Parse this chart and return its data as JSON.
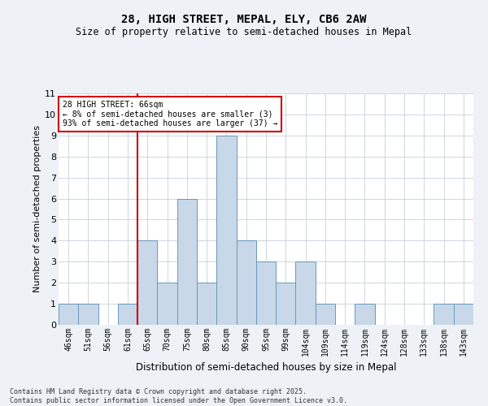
{
  "title1": "28, HIGH STREET, MEPAL, ELY, CB6 2AW",
  "title2": "Size of property relative to semi-detached houses in Mepal",
  "xlabel": "Distribution of semi-detached houses by size in Mepal",
  "ylabel": "Number of semi-detached properties",
  "categories": [
    "46sqm",
    "51sqm",
    "56sqm",
    "61sqm",
    "65sqm",
    "70sqm",
    "75sqm",
    "80sqm",
    "85sqm",
    "90sqm",
    "95sqm",
    "99sqm",
    "104sqm",
    "109sqm",
    "114sqm",
    "119sqm",
    "124sqm",
    "128sqm",
    "133sqm",
    "138sqm",
    "143sqm"
  ],
  "values": [
    1,
    1,
    0,
    1,
    4,
    2,
    6,
    2,
    9,
    4,
    3,
    2,
    3,
    1,
    0,
    1,
    0,
    0,
    0,
    1,
    1
  ],
  "bar_color": "#c8d8e8",
  "bar_edge_color": "#6699bb",
  "highlight_index": 4,
  "highlight_line_color": "#cc0000",
  "annotation_text": "28 HIGH STREET: 66sqm\n← 8% of semi-detached houses are smaller (3)\n93% of semi-detached houses are larger (37) →",
  "annotation_box_color": "#ffffff",
  "annotation_box_edge": "#cc0000",
  "ylim": [
    0,
    11
  ],
  "yticks": [
    0,
    1,
    2,
    3,
    4,
    5,
    6,
    7,
    8,
    9,
    10,
    11
  ],
  "footnote": "Contains HM Land Registry data © Crown copyright and database right 2025.\nContains public sector information licensed under the Open Government Licence v3.0.",
  "bg_color": "#eef2f7",
  "plot_bg_color": "#ffffff",
  "grid_color": "#c8d0dc"
}
